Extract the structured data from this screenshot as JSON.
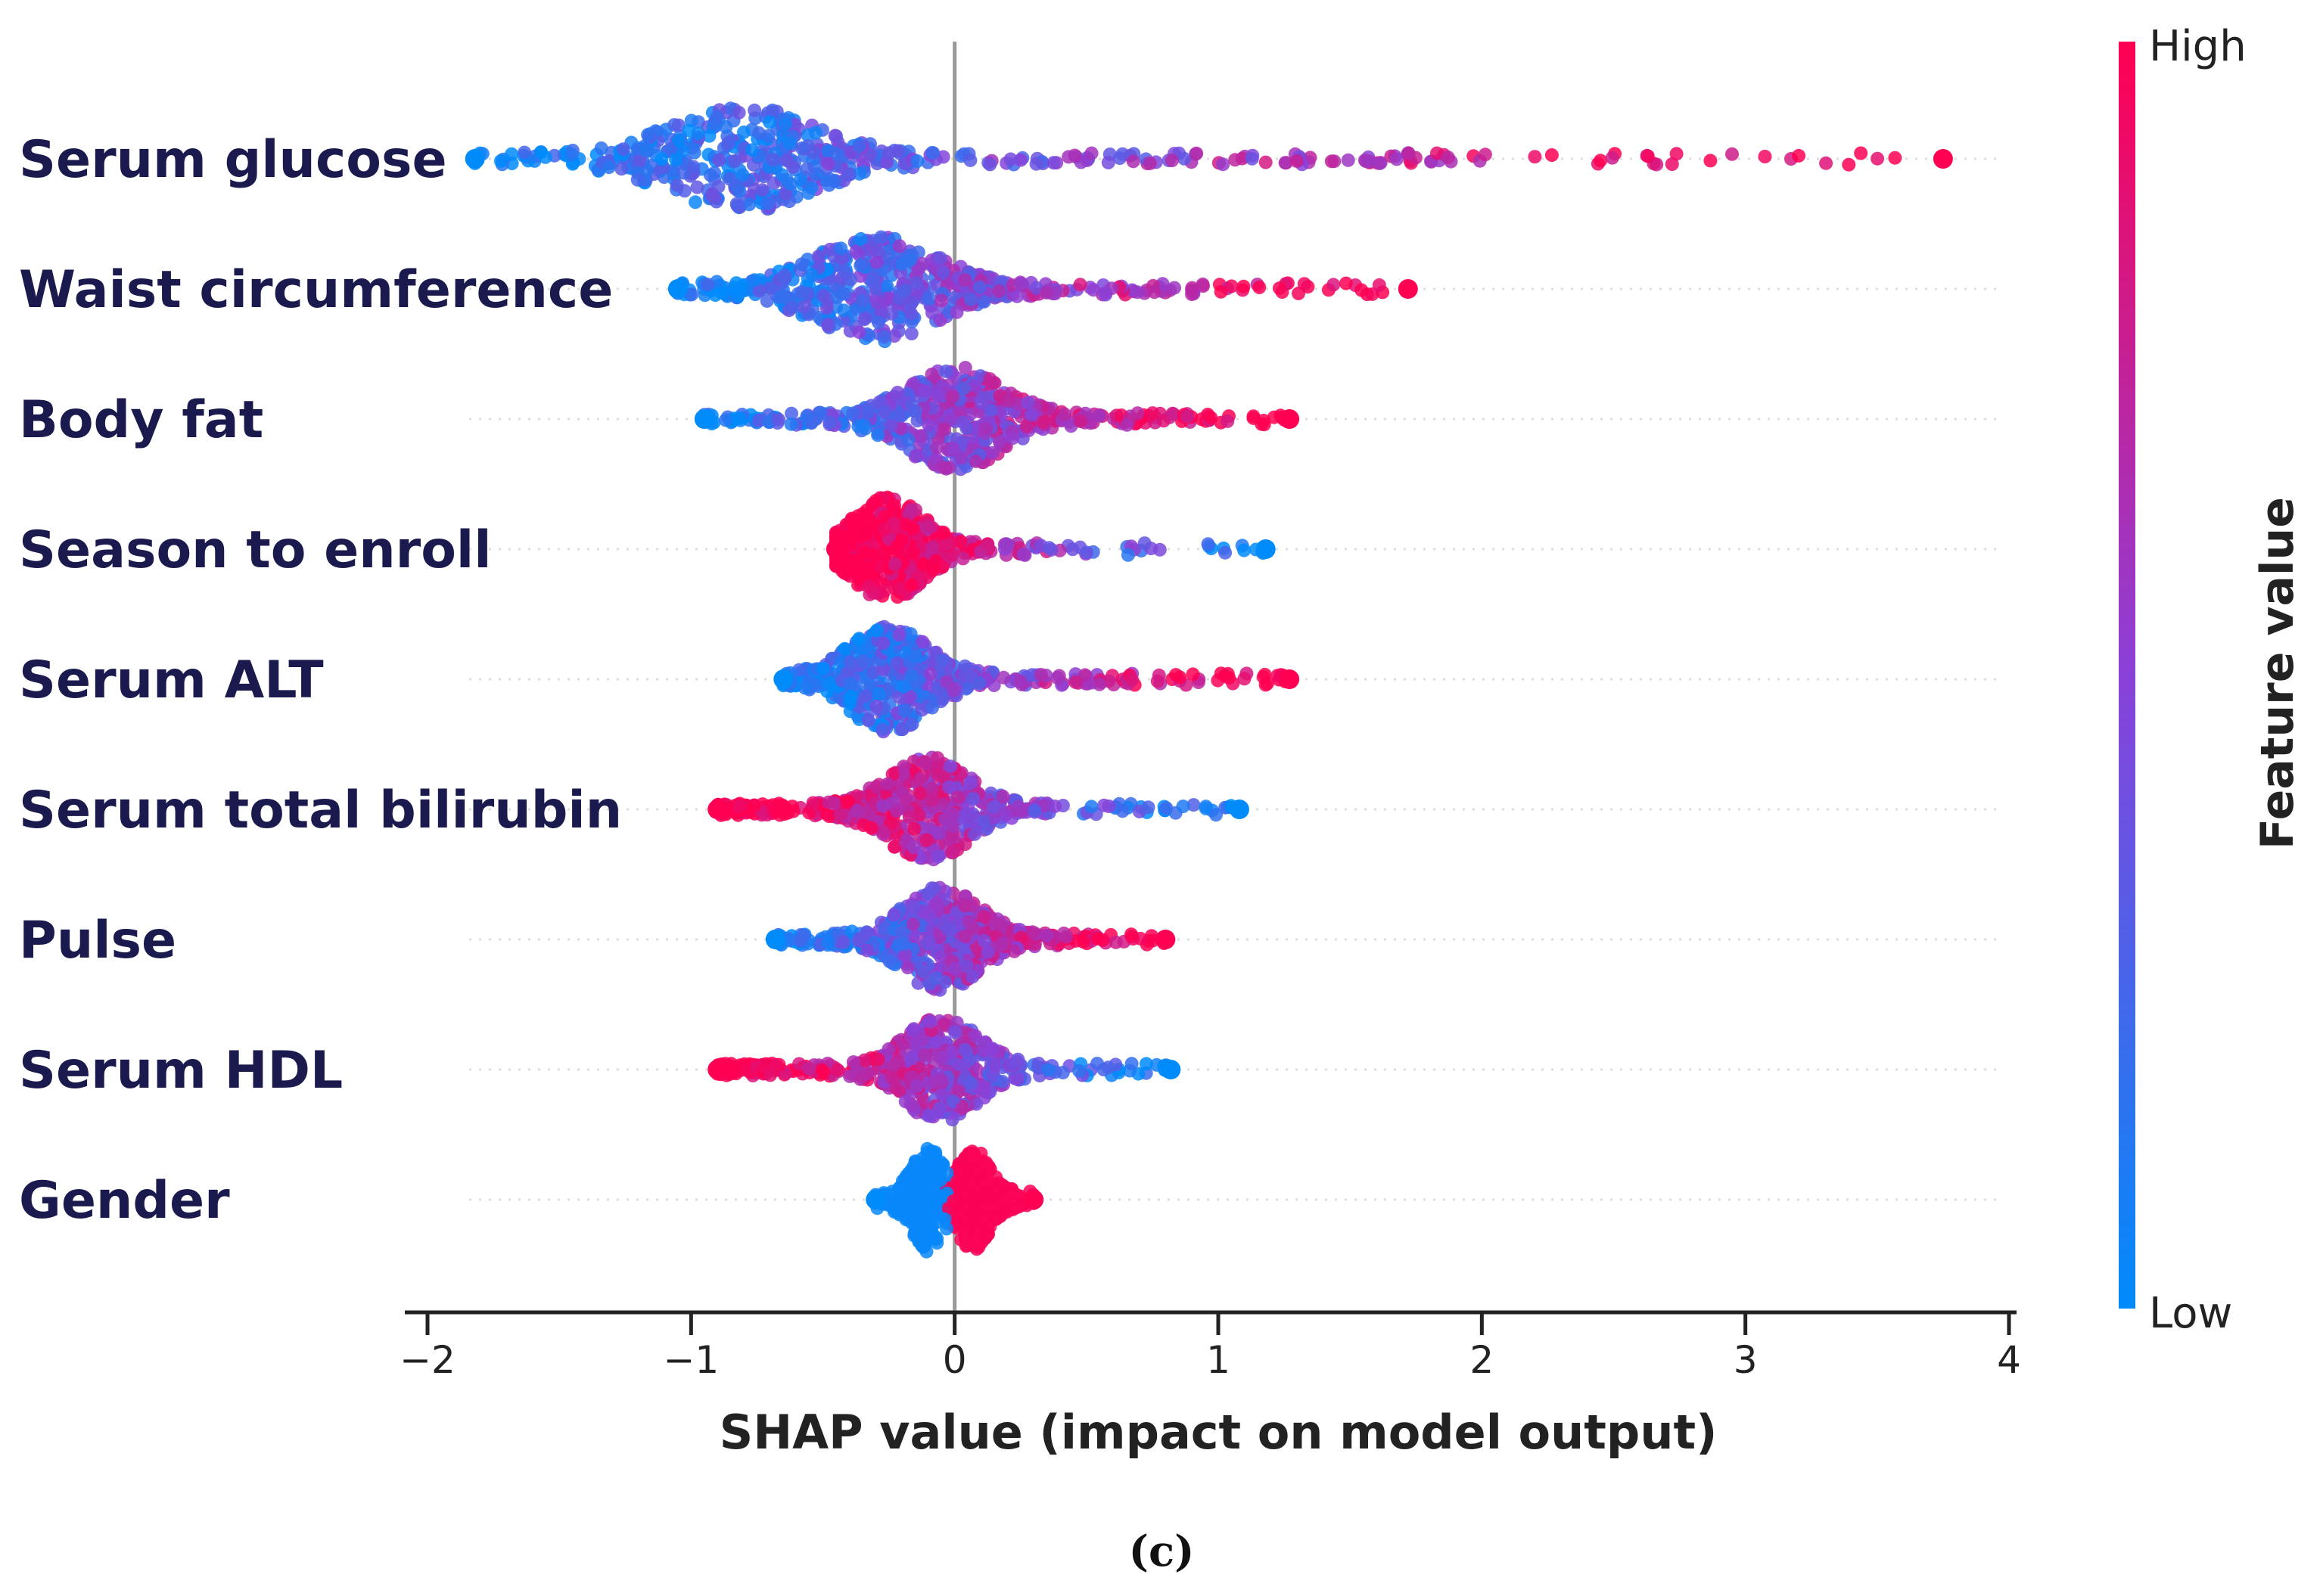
{
  "chart_data": {
    "type": "scatter",
    "subtype": "beeswarm",
    "xlabel": "SHAP value (impact on model output)",
    "xlim": [
      -2,
      4
    ],
    "xticks": [
      -2,
      -1,
      0,
      1,
      2,
      3,
      4
    ],
    "xtick_labels": [
      "−2",
      "−1",
      "0",
      "1",
      "2",
      "3",
      "4"
    ],
    "colorbar": {
      "title": "Feature value",
      "high_label": "High",
      "low_label": "Low",
      "high_color": "#ff0052",
      "low_color": "#008bfb"
    },
    "panel_label": "(c)",
    "features": [
      {
        "name": "Serum glucose",
        "min": -1.82,
        "max": 3.75,
        "direction": "positive",
        "cluster_center": -0.8,
        "spread": 0.55
      },
      {
        "name": "Waist circumference",
        "min": -1.05,
        "max": 1.72,
        "direction": "positive",
        "cluster_center": -0.3,
        "spread": 0.45
      },
      {
        "name": "Body fat",
        "min": -0.95,
        "max": 1.27,
        "direction": "positive",
        "cluster_center": 0.0,
        "spread": 0.35
      },
      {
        "name": "Season to enroll",
        "min": -0.45,
        "max": 1.18,
        "direction": "negative",
        "cluster_center": -0.25,
        "spread": 0.25
      },
      {
        "name": "Serum ALT",
        "min": -0.65,
        "max": 1.27,
        "direction": "positive",
        "cluster_center": -0.25,
        "spread": 0.3
      },
      {
        "name": "Serum total bilirubin",
        "min": -0.9,
        "max": 1.08,
        "direction": "negative",
        "cluster_center": -0.1,
        "spread": 0.3
      },
      {
        "name": "Pulse",
        "min": -0.68,
        "max": 0.8,
        "direction": "positive",
        "cluster_center": -0.05,
        "spread": 0.28
      },
      {
        "name": "Serum HDL",
        "min": -0.9,
        "max": 0.82,
        "direction": "negative",
        "cluster_center": -0.05,
        "spread": 0.28
      },
      {
        "name": "Gender",
        "min": -0.3,
        "max": 0.3,
        "direction": "positive",
        "cluster_center": 0.0,
        "spread": 0.12,
        "binary": true
      }
    ]
  }
}
